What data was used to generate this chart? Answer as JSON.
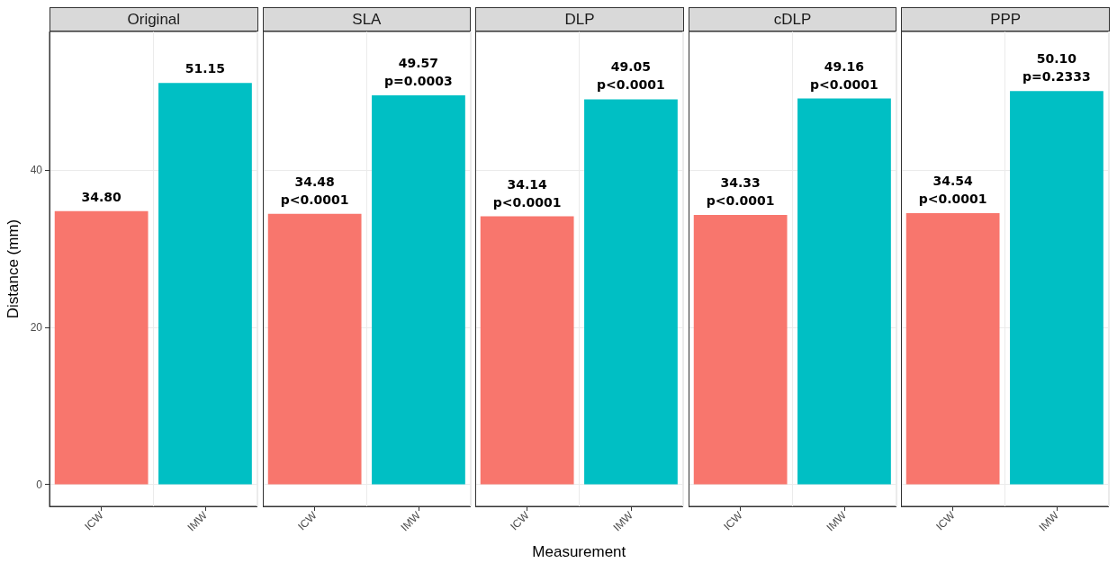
{
  "chart_data": [
    {
      "type": "bar",
      "title": "Original",
      "ylabel": "Distance (mm)",
      "categories": [
        "ICW",
        "IMW"
      ],
      "values": [
        34.8,
        51.15
      ],
      "colors": [
        "#f8766d",
        "#00bfc4"
      ],
      "value_labels": [
        "34.80",
        "51.15"
      ],
      "ylim": [
        -2.8,
        57.7
      ],
      "yticks": [
        0,
        20,
        40
      ],
      "grid": true
    },
    {
      "type": "bar",
      "title": "SLA",
      "categories": [
        "ICW",
        "IMW"
      ],
      "values": [
        34.48,
        49.57
      ],
      "colors": [
        "#f8766d",
        "#00bfc4"
      ],
      "value_labels": [
        "34.48\np<0.0001",
        "49.57\np=0.0003"
      ],
      "ylim": [
        -2.8,
        57.7
      ],
      "yticks": [
        0,
        20,
        40
      ],
      "grid": true,
      "tick_labels": "x"
    },
    {
      "type": "bar",
      "title": "DLP",
      "xlabel": "Measurement",
      "categories": [
        "ICW",
        "IMW"
      ],
      "values": [
        34.14,
        49.05
      ],
      "colors": [
        "#f8766d",
        "#00bfc4"
      ],
      "value_labels": [
        "34.14\np<0.0001",
        "49.05\np<0.0001"
      ],
      "ylim": [
        -2.8,
        57.7
      ],
      "yticks": [
        0,
        20,
        40
      ],
      "grid": true,
      "tick_labels": "x"
    },
    {
      "type": "bar",
      "title": "cDLP",
      "categories": [
        "ICW",
        "IMW"
      ],
      "values": [
        34.33,
        49.16
      ],
      "colors": [
        "#f8766d",
        "#00bfc4"
      ],
      "value_labels": [
        "34.33\np<0.0001",
        "49.16\np<0.0001"
      ],
      "ylim": [
        -2.8,
        57.7
      ],
      "yticks": [
        0,
        20,
        40
      ],
      "grid": true,
      "tick_labels": "x"
    },
    {
      "type": "bar",
      "title": "PPP",
      "categories": [
        "ICW",
        "IMW"
      ],
      "values": [
        34.54,
        50.1
      ],
      "colors": [
        "#f8766d",
        "#00bfc4"
      ],
      "value_labels": [
        "34.54\np<0.0001",
        "50.10\np=0.2333"
      ],
      "ylim": [
        -2.8,
        57.7
      ],
      "yticks": [
        0,
        20,
        40
      ],
      "grid": true,
      "tick_labels": "x"
    }
  ]
}
